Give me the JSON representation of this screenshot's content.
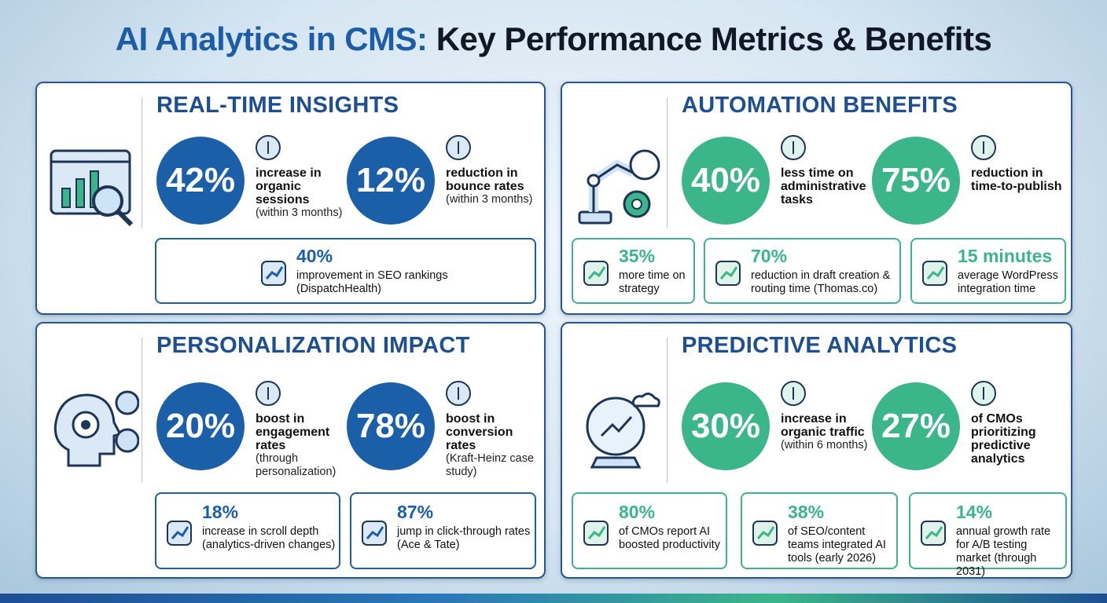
{
  "title": {
    "highlight": "AI Analytics in CMS:",
    "rest": "Key Performance Metrics & Benefits"
  },
  "panels": [
    {
      "heading": "REAL-TIME INSIGHTS",
      "big": [
        {
          "value": "42%",
          "label": "increase in organic sessions",
          "note": "(within 3 months)"
        },
        {
          "value": "12%",
          "label": "reduction in bounce rates",
          "note": "(within 3 months)"
        }
      ],
      "small": [
        {
          "value": "40%",
          "label": "improvement in SEO rankings (DispatchHealth)"
        }
      ]
    },
    {
      "heading": "AUTOMATION BENEFITS",
      "big": [
        {
          "value": "40%",
          "label": "less time on administrative tasks"
        },
        {
          "value": "75%",
          "label": "reduction in time-to-publish"
        }
      ],
      "small": [
        {
          "value": "35%",
          "label": "more time on strategy"
        },
        {
          "value": "70%",
          "label": "reduction in draft creation & routing time (Thomas.co)"
        },
        {
          "value": "15 minutes",
          "label": "average WordPress integration time"
        }
      ]
    },
    {
      "heading": "PERSONALIZATION IMPACT",
      "big": [
        {
          "value": "20%",
          "label": "boost in engagement rates",
          "note": "(through personalization)"
        },
        {
          "value": "78%",
          "label": "boost in conversion rates",
          "note": "(Kraft-Heinz case study)"
        }
      ],
      "small": [
        {
          "value": "18%",
          "label": "increase in scroll depth (analytics-driven changes)"
        },
        {
          "value": "87%",
          "label": "jump in click-through rates (Ace & Tate)"
        }
      ]
    },
    {
      "heading": "PREDICTIVE ANALYTICS",
      "big": [
        {
          "value": "30%",
          "label": "increase in organic traffic",
          "note": "(within 6 months)"
        },
        {
          "value": "27%",
          "label": "of CMOs prioritizing predictive analytics"
        }
      ],
      "small": [
        {
          "value": "80%",
          "label": "of CMOs report AI boosted productivity"
        },
        {
          "value": "38%",
          "label": "of SEO/content teams integrated AI tools (early 2026)"
        },
        {
          "value": "14%",
          "label": "annual growth rate for A/B testing market (through 2031)"
        }
      ]
    }
  ]
}
